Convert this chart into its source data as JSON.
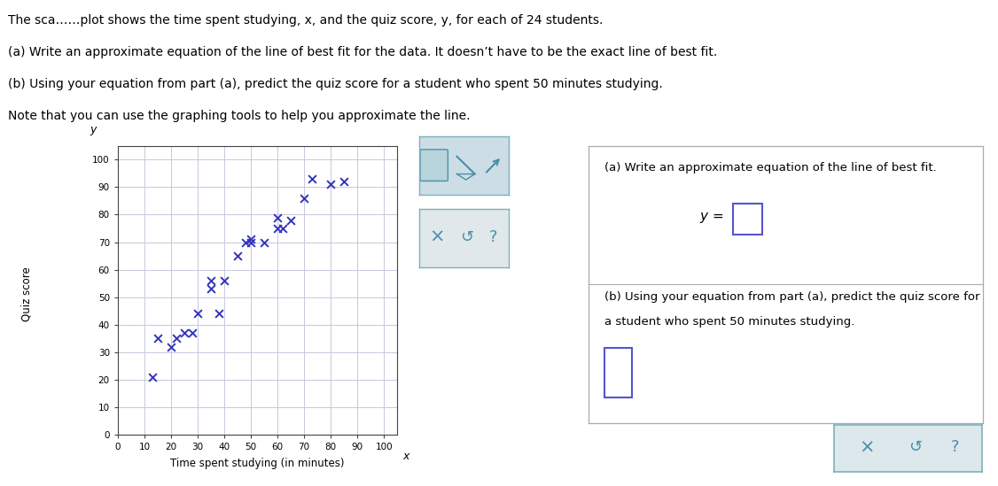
{
  "scatter_x": [
    13,
    15,
    20,
    22,
    25,
    28,
    30,
    35,
    35,
    38,
    40,
    45,
    48,
    50,
    50,
    55,
    60,
    60,
    62,
    65,
    70,
    73,
    80,
    85
  ],
  "scatter_y": [
    21,
    35,
    32,
    35,
    37,
    37,
    44,
    53,
    56,
    44,
    56,
    65,
    70,
    70,
    71,
    70,
    75,
    79,
    75,
    78,
    86,
    93,
    91,
    92
  ],
  "marker_color": "#3333bb",
  "xlim": [
    0,
    105
  ],
  "ylim": [
    0,
    105
  ],
  "xticks": [
    0,
    10,
    20,
    30,
    40,
    50,
    60,
    70,
    80,
    90,
    100
  ],
  "yticks": [
    0,
    10,
    20,
    30,
    40,
    50,
    60,
    70,
    80,
    90,
    100
  ],
  "grid_color": "#c8c8dc",
  "spine_color": "#444444",
  "bg_color": "#ffffff",
  "outer_bg": "#ffffff",
  "xlabel": "Time spent studying (in minutes)",
  "ylabel": "Quiz score",
  "panel_a_line1": "(a) Write an approximate equation of the line of best fit.",
  "panel_b_line1": "(b) Using your equation from part (a), predict the quiz score for",
  "panel_b_line2": "a student who spent 50 minutes studying.",
  "box_color": "#5555cc",
  "toolbar_bg": "#ccdde6",
  "toolbar_icon_color": "#4a8fa8",
  "toolbar2_bg": "#dde8ec",
  "top_lines": [
    "The sca……plot shows the time spent studying, x, and the quiz score, y, for each of 24 students.",
    "(a) Write an approximate equation of the line of best fit for the data. It doesn’t have to be the exact line of best fit.",
    "(b) Using your equation from part (a), predict the quiz score for a student who spent 50 minutes studying.",
    "Note that you can use the graphing tools to help you approximate the line."
  ]
}
